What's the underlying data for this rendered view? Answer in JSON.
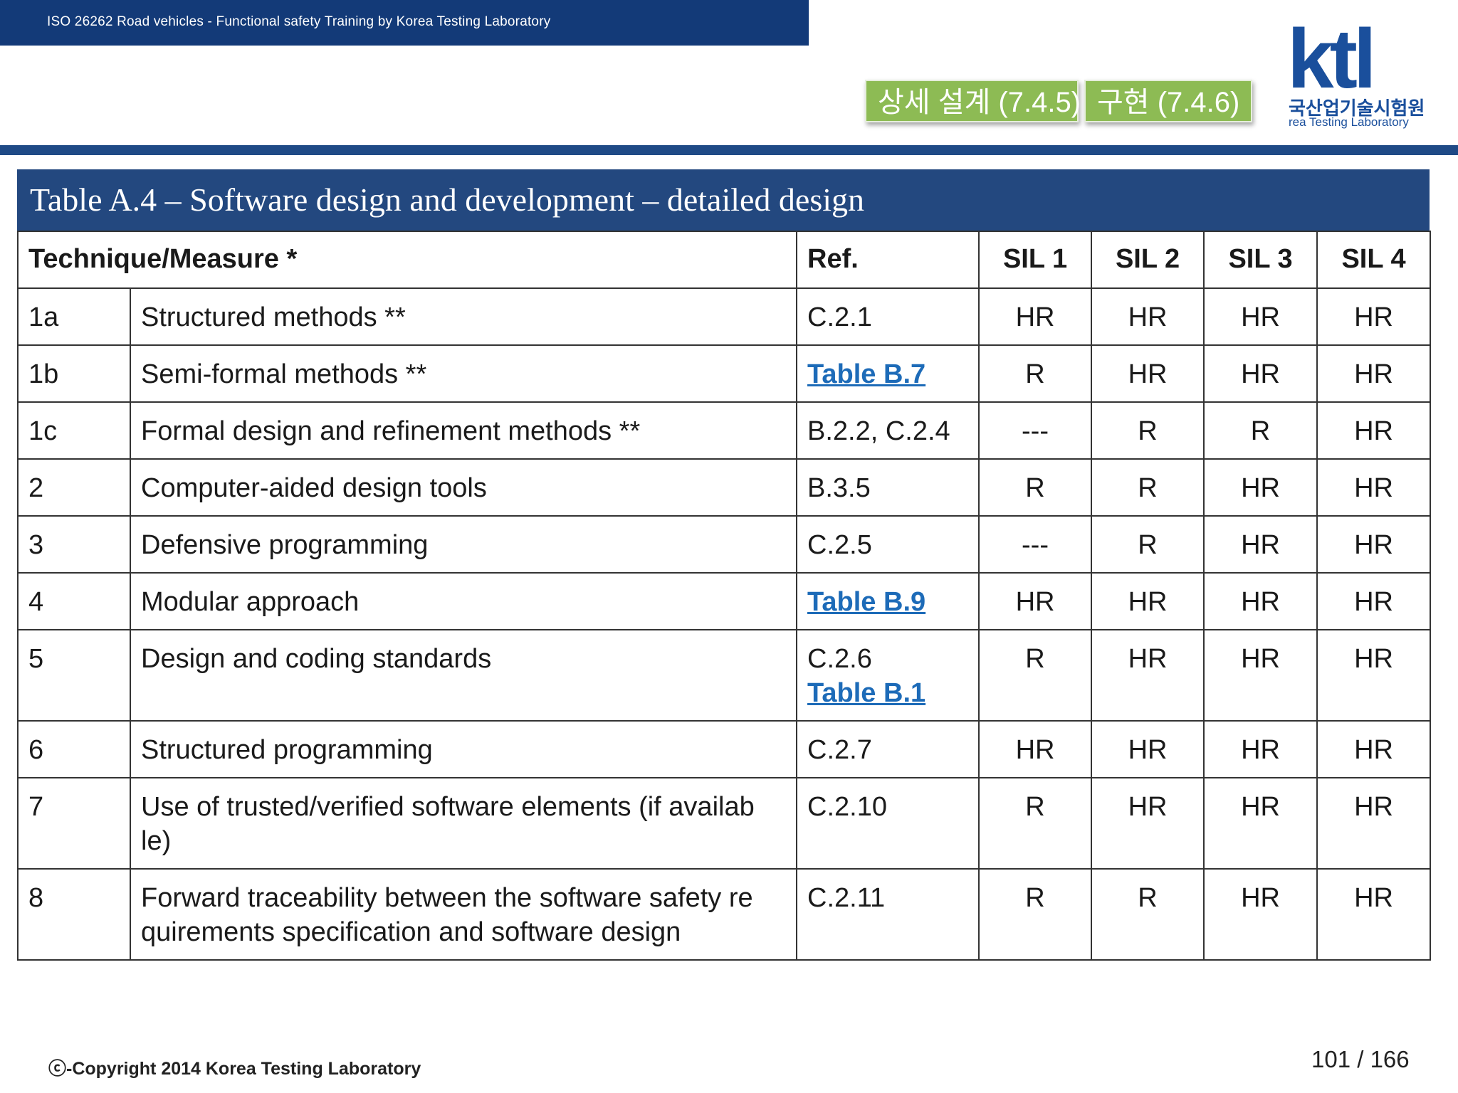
{
  "header": {
    "course_title": "ISO 26262 Road vehicles - Functional safety Training by Korea Testing Laboratory",
    "tabs": [
      {
        "label": "상세 설계 (7.4.5)"
      },
      {
        "label": "구현 (7.4.6)"
      }
    ],
    "logo": {
      "mark": "ktl",
      "korean_name": "국산업기술시험원",
      "english_name": "rea Testing Laboratory"
    }
  },
  "table": {
    "title": "Table A.4 – Software design and development – detailed design",
    "columns": {
      "technique": "Technique/Measure *",
      "ref": "Ref.",
      "sil1": "SIL 1",
      "sil2": "SIL 2",
      "sil3": "SIL 3",
      "sil4": "SIL 4"
    },
    "rows": [
      {
        "id": "1a",
        "technique": "Structured methods   **",
        "ref": "C.2.1",
        "ref_link": "",
        "sil": [
          "HR",
          "HR",
          "HR",
          "HR"
        ]
      },
      {
        "id": "1b",
        "technique": "Semi-formal methods   **",
        "ref": "",
        "ref_link": "Table B.7",
        "sil": [
          "R",
          "HR",
          "HR",
          "HR"
        ]
      },
      {
        "id": "1c",
        "technique": "Formal design and refinement methods   **",
        "ref": "B.2.2,  C.2.4",
        "ref_link": "",
        "sil": [
          "---",
          "R",
          "R",
          "HR"
        ]
      },
      {
        "id": "2",
        "technique": "Computer-aided design tools",
        "ref": "B.3.5",
        "ref_link": "",
        "sil": [
          "R",
          "R",
          "HR",
          "HR"
        ]
      },
      {
        "id": "3",
        "technique": "Defensive programming",
        "ref": "C.2.5",
        "ref_link": "",
        "sil": [
          "---",
          "R",
          "HR",
          "HR"
        ]
      },
      {
        "id": "4",
        "technique": "Modular approach",
        "ref": "",
        "ref_link": "Table B.9",
        "sil": [
          "HR",
          "HR",
          "HR",
          "HR"
        ]
      },
      {
        "id": "5",
        "technique": "Design and coding standards",
        "ref": "C.2.6",
        "ref_link": "Table B.1",
        "sil": [
          "R",
          "HR",
          "HR",
          "HR"
        ]
      },
      {
        "id": "6",
        "technique": "Structured programming",
        "ref": "C.2.7",
        "ref_link": "",
        "sil": [
          "HR",
          "HR",
          "HR",
          "HR"
        ]
      },
      {
        "id": "7",
        "technique": "Use of trusted/verified software elements (if availab le)",
        "ref": "C.2.10",
        "ref_link": "",
        "sil": [
          "R",
          "HR",
          "HR",
          "HR"
        ]
      },
      {
        "id": "8",
        "technique": "Forward traceability between the software safety re quirements specification and software design",
        "ref": "C.2.11",
        "ref_link": "",
        "sil": [
          "R",
          "R",
          "HR",
          "HR"
        ]
      }
    ]
  },
  "footer": {
    "copyright": "ⓒ-Copyright 2014 Korea Testing Laboratory",
    "page": "101 / 166"
  },
  "colors": {
    "header_bar": "#133a78",
    "table_title_bg": "#23487f",
    "tab_green": "#8dbb54",
    "link_blue": "#1d6bb8"
  }
}
